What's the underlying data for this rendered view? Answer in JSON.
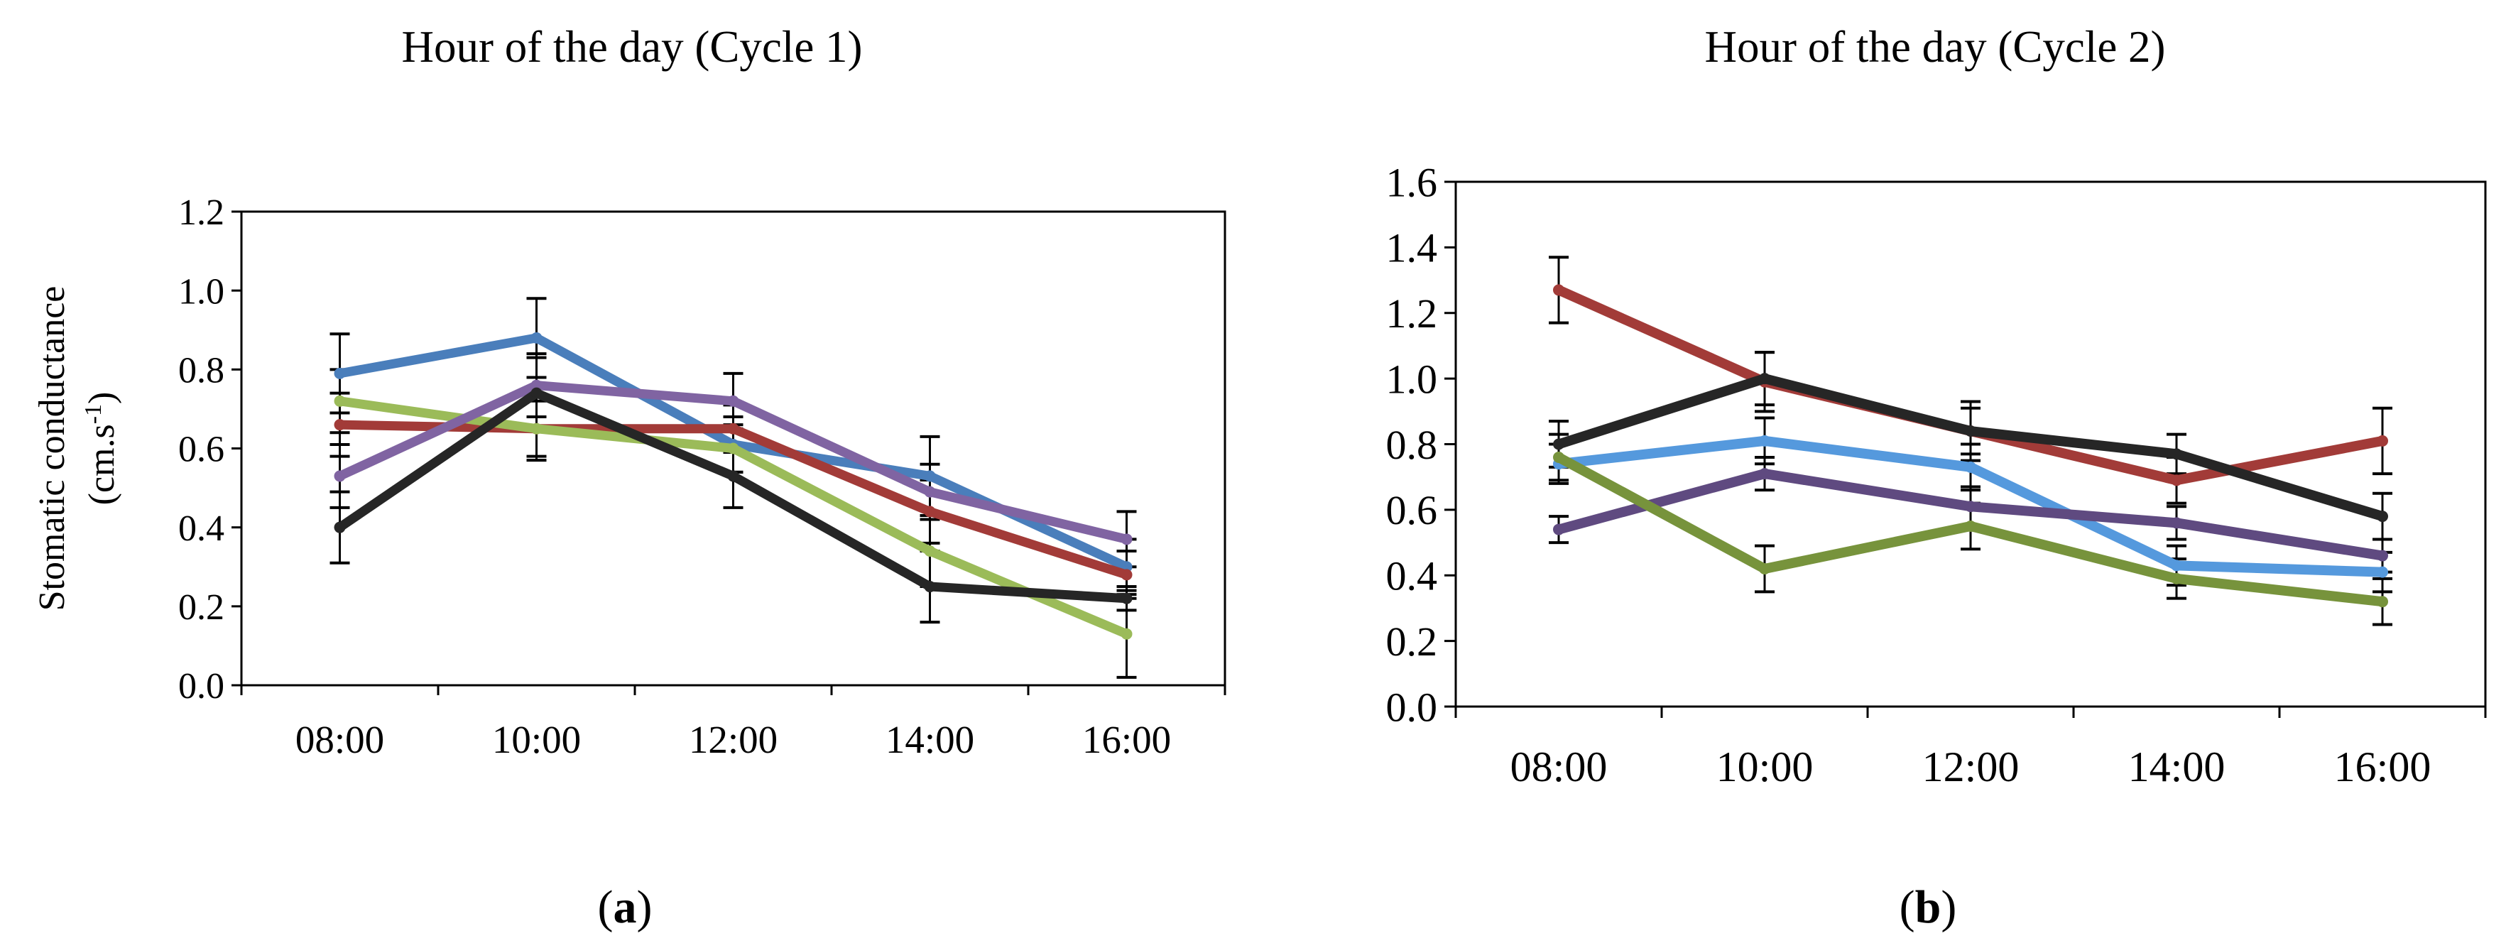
{
  "figure": {
    "label_a": "a",
    "label_b": "b"
  },
  "chart_data": [
    {
      "type": "line",
      "title": "Hour of the day (Cycle 1)",
      "xlabel": "",
      "ylabel": "Stomatic conductance",
      "ylabel_line2": "(cm.s",
      "ylabel_sup": "-1",
      "ylabel_close": ")",
      "categories": [
        "08:00",
        "10:00",
        "12:00",
        "14:00",
        "16:00"
      ],
      "ylim": [
        0,
        1.2
      ],
      "yticks": [
        "0.0",
        "0.2",
        "0.4",
        "0.6",
        "0.8",
        "1.0",
        "1.2"
      ],
      "ytick_values": [
        0,
        0.2,
        0.4,
        0.6,
        0.8,
        1.0,
        1.2
      ],
      "series": [
        {
          "name": "Series 1 (blue)",
          "color": "#4a7ebb",
          "values": [
            0.79,
            0.88,
            0.61,
            0.53,
            0.3
          ],
          "errors": [
            0.1,
            0.1,
            0.07,
            0.1,
            0.07
          ]
        },
        {
          "name": "Series 2 (red)",
          "color": "#a23b38",
          "values": [
            0.66,
            0.65,
            0.65,
            0.44,
            0.28
          ],
          "errors": [
            0.08,
            0.07,
            0.06,
            0.08,
            0.06
          ]
        },
        {
          "name": "Series 3 (green)",
          "color": "#9bbb59",
          "values": [
            0.72,
            0.65,
            0.6,
            0.34,
            0.13
          ],
          "errors": [
            0.08,
            0.08,
            0.06,
            0.09,
            0.11
          ]
        },
        {
          "name": "Series 4 (purple)",
          "color": "#8064a2",
          "values": [
            0.53,
            0.76,
            0.72,
            0.49,
            0.37
          ],
          "errors": [
            0.08,
            0.08,
            0.07,
            0.07,
            0.07
          ]
        },
        {
          "name": "Series 5 (black)",
          "color": "#262626",
          "values": [
            0.4,
            0.74,
            0.53,
            0.25,
            0.22
          ],
          "errors": [
            0.09,
            0.09,
            0.08,
            0.09,
            0.03
          ]
        }
      ]
    },
    {
      "type": "line",
      "title": "Hour of the day (Cycle 2)",
      "xlabel": "",
      "ylabel": "",
      "categories": [
        "08:00",
        "10:00",
        "12:00",
        "14:00",
        "16:00"
      ],
      "ylim": [
        0,
        1.6
      ],
      "yticks": [
        "0.0",
        "0.2",
        "0.4",
        "0.6",
        "0.8",
        "1.0",
        "1.2",
        "1.4",
        "1.6"
      ],
      "ytick_values": [
        0,
        0.2,
        0.4,
        0.6,
        0.8,
        1.0,
        1.2,
        1.4,
        1.6
      ],
      "series": [
        {
          "name": "Series 1 (red)",
          "color": "#a23b38",
          "values": [
            1.27,
            0.99,
            0.84,
            0.69,
            0.81
          ],
          "errors": [
            0.1,
            0.09,
            0.09,
            0.07,
            0.1
          ]
        },
        {
          "name": "Series 2 (black)",
          "color": "#262626",
          "values": [
            0.8,
            1.0,
            0.84,
            0.77,
            0.58
          ],
          "errors": [
            0.07,
            0.08,
            0.07,
            0.06,
            0.07
          ]
        },
        {
          "name": "Series 3 (blue)",
          "color": "#5599dd",
          "values": [
            0.74,
            0.81,
            0.73,
            0.43,
            0.41
          ],
          "errors": [
            0.06,
            0.07,
            0.07,
            0.06,
            0.06
          ]
        },
        {
          "name": "Series 4 (purple)",
          "color": "#5f4a80",
          "values": [
            0.54,
            0.71,
            0.61,
            0.56,
            0.46
          ],
          "errors": [
            0.04,
            0.05,
            0.06,
            0.05,
            0.05
          ]
        },
        {
          "name": "Series 5 (green)",
          "color": "#77933c",
          "values": [
            0.76,
            0.42,
            0.55,
            0.39,
            0.32
          ],
          "errors": [
            0.07,
            0.07,
            0.07,
            0.06,
            0.07
          ]
        }
      ]
    }
  ]
}
